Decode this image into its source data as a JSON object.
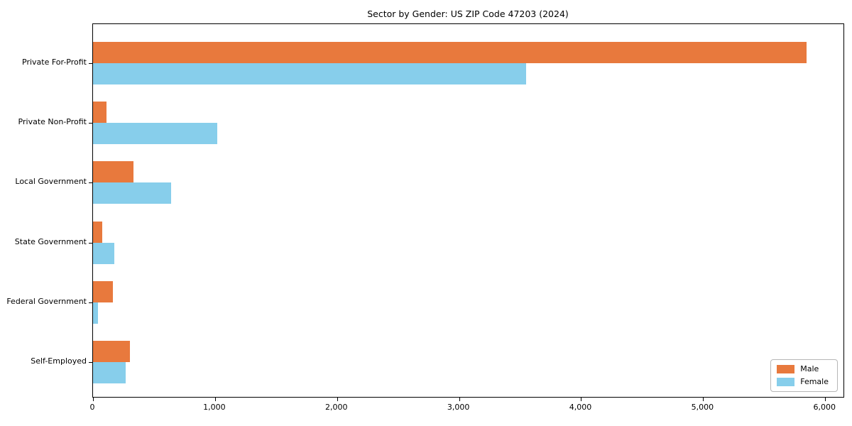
{
  "chart_data": {
    "type": "bar",
    "orientation": "horizontal",
    "title": "Sector by Gender: US ZIP Code 47203 (2024)",
    "categories": [
      "Private For-Profit",
      "Private Non-Profit",
      "Local Government",
      "State Government",
      "Federal Government",
      "Self-Employed"
    ],
    "series": [
      {
        "name": "Male",
        "color": "#e8793d",
        "values": [
          5850,
          110,
          330,
          75,
          160,
          300
        ]
      },
      {
        "name": "Female",
        "color": "#87ceeb",
        "values": [
          3550,
          1020,
          640,
          175,
          40,
          270
        ]
      }
    ],
    "xlim": [
      0,
      6150
    ],
    "x_ticks": [
      0,
      1000,
      2000,
      3000,
      4000,
      5000,
      6000
    ],
    "x_tick_labels": [
      "0",
      "1,000",
      "2,000",
      "3,000",
      "4,000",
      "5,000",
      "6,000"
    ],
    "xlabel": "",
    "ylabel": "",
    "grid": false,
    "legend_position": "lower right",
    "axis_color": "#000000",
    "background_color": "#ffffff"
  }
}
